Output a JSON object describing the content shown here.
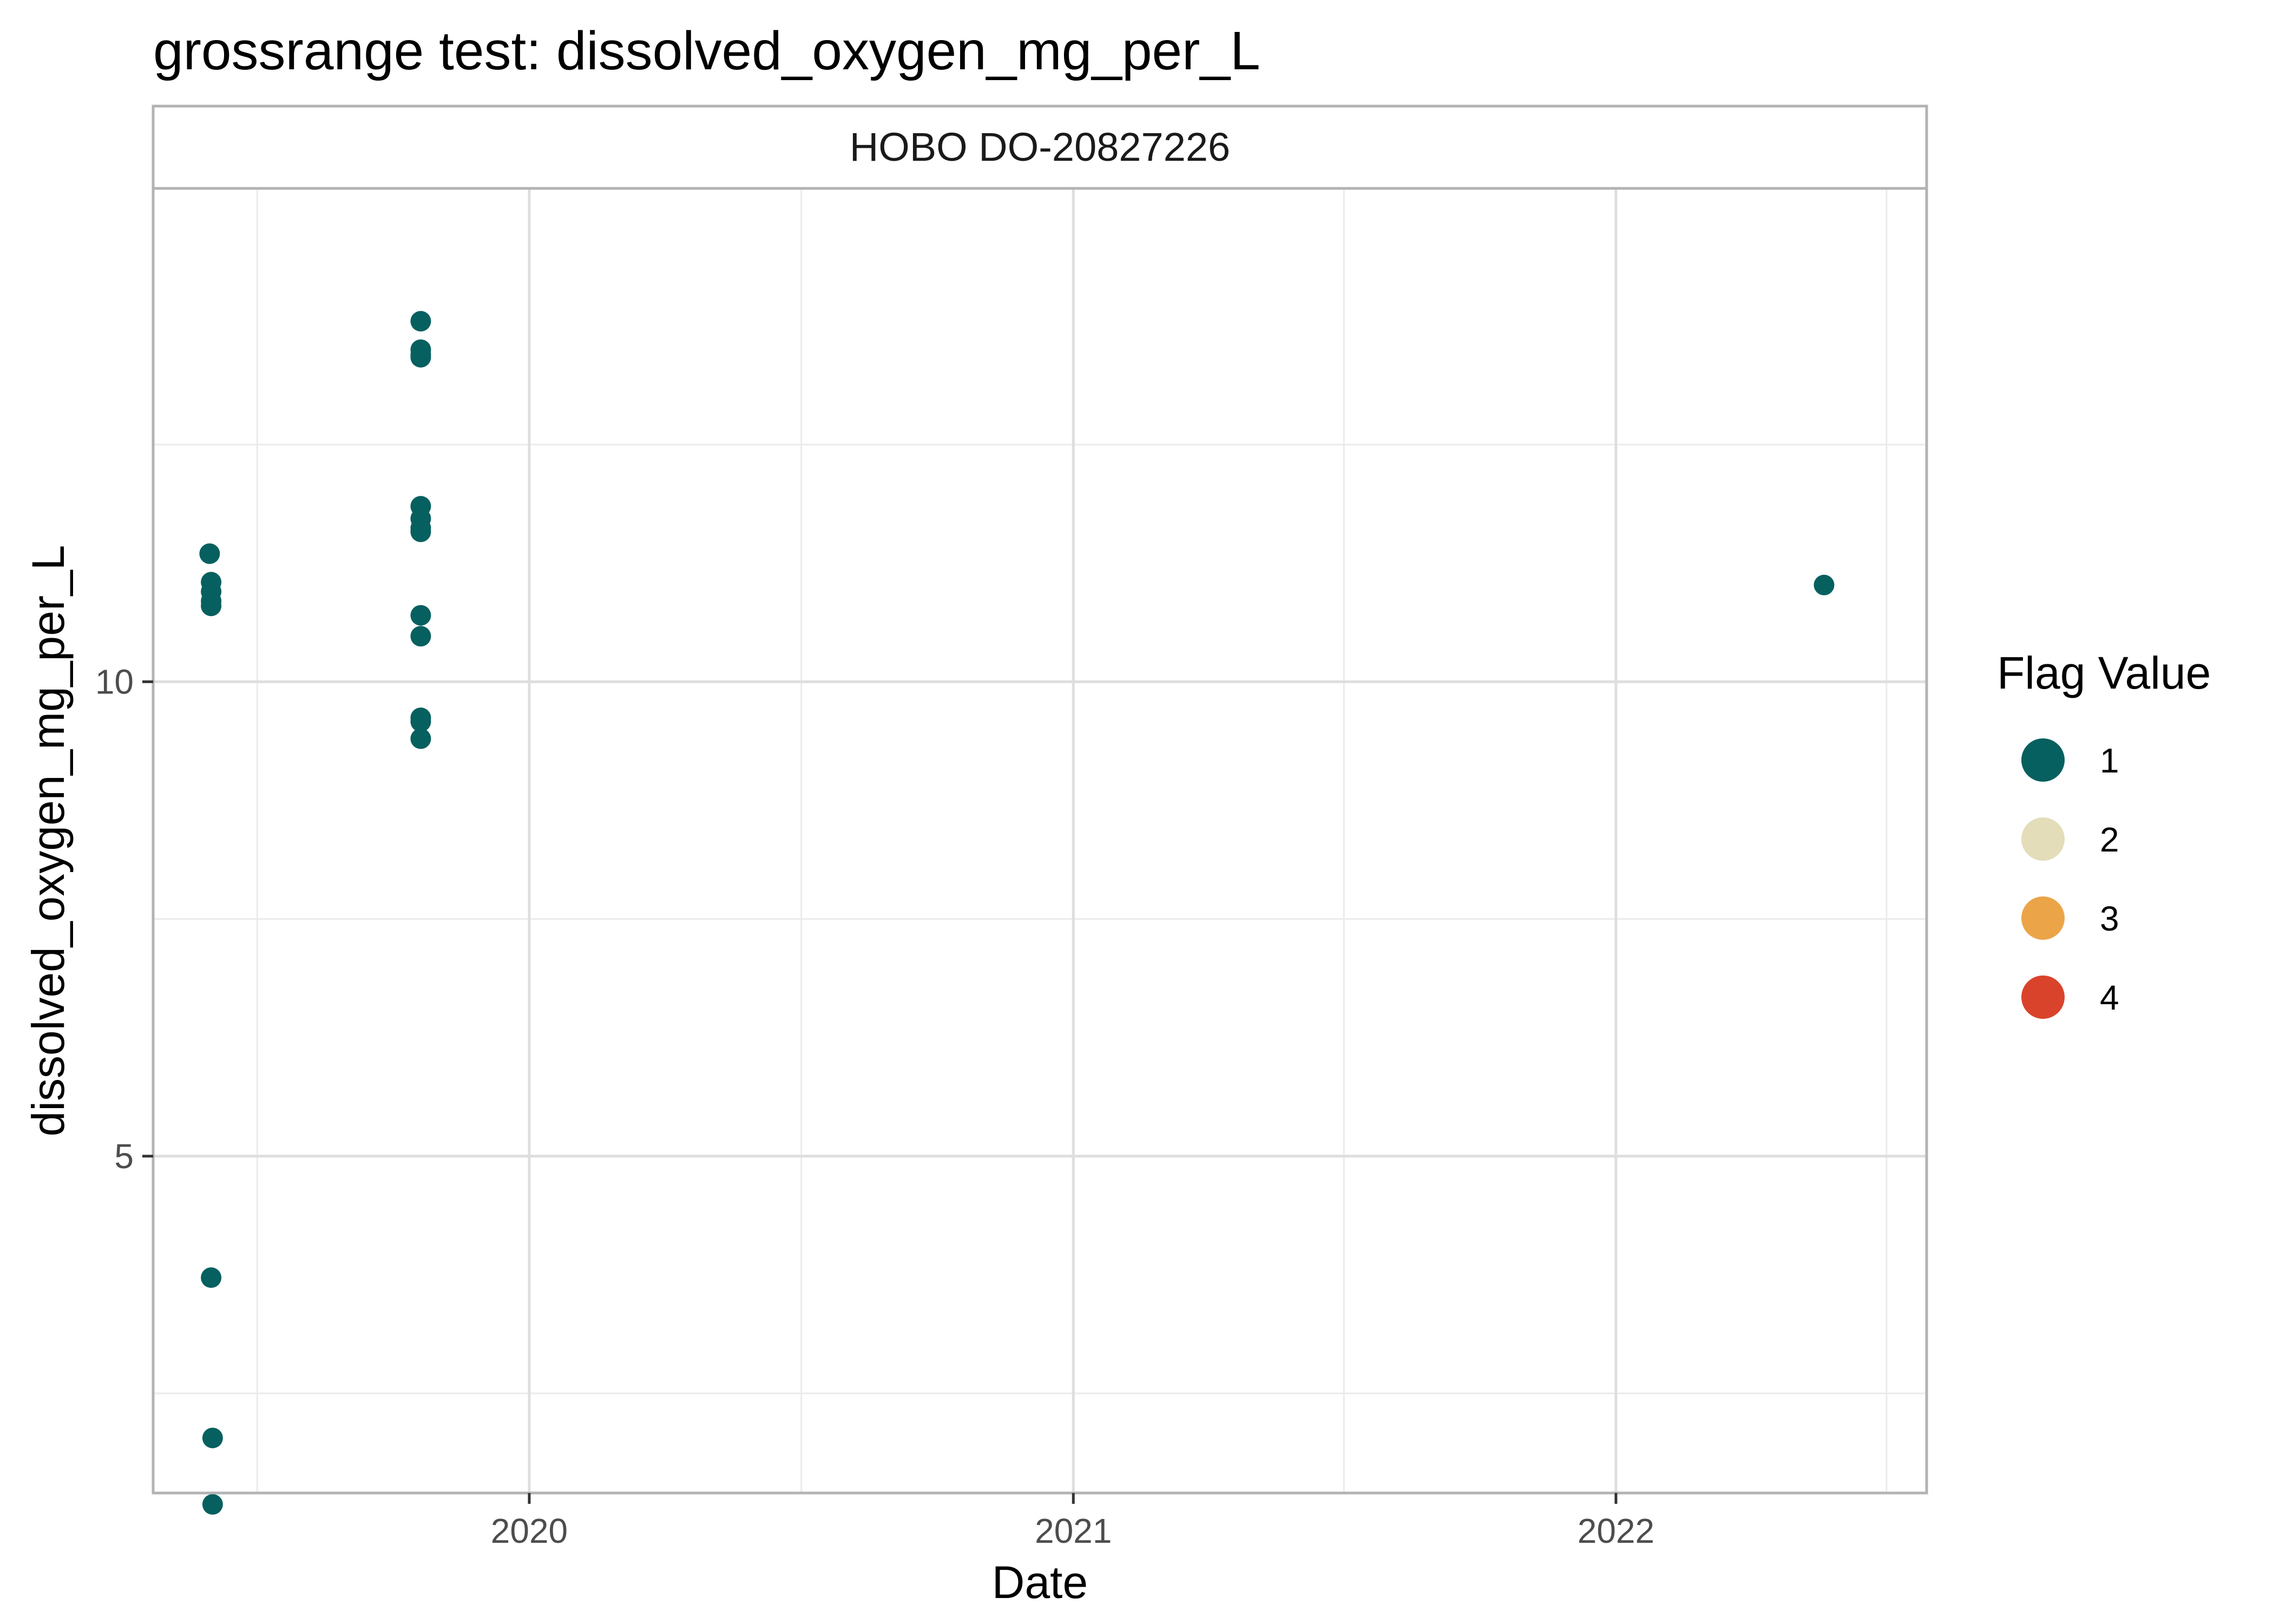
{
  "chart_data": {
    "type": "scatter",
    "title": "grossrange test: dissolved_oxygen_mg_per_L",
    "facet_label": "HOBO DO-20827226",
    "xlabel": "Date",
    "ylabel": "dissolved_oxygen_mg_per_L",
    "x_type": "date",
    "xlim": [
      "2019-04-23",
      "2022-07-29"
    ],
    "ylim": [
      1.45,
      15.2
    ],
    "x_ticks": [
      {
        "label": "2020",
        "date": "2020-01-01"
      },
      {
        "label": "2021",
        "date": "2021-01-01"
      },
      {
        "label": "2022",
        "date": "2022-01-01"
      }
    ],
    "x_minor_ticks": [
      "2019-07-02",
      "2020-07-02",
      "2021-07-02",
      "2022-07-02"
    ],
    "y_ticks": [
      5,
      10
    ],
    "y_minor_ticks": [
      2.5,
      7.5,
      12.5
    ],
    "grid": true,
    "legend": {
      "title": "Flag Value",
      "placement": "right",
      "entries": [
        {
          "label": "1",
          "color": "#06605F"
        },
        {
          "label": "2",
          "color": "#E3DDBA"
        },
        {
          "label": "3",
          "color": "#EBA448"
        },
        {
          "label": "4",
          "color": "#D9432B"
        }
      ]
    },
    "series": [
      {
        "flag": "1",
        "color": "#06605F",
        "points": [
          {
            "x": "2019-05-31",
            "y": 11.35
          },
          {
            "x": "2019-06-01",
            "y": 11.05
          },
          {
            "x": "2019-06-01",
            "y": 10.95
          },
          {
            "x": "2019-06-01",
            "y": 10.85
          },
          {
            "x": "2019-06-01",
            "y": 10.8
          },
          {
            "x": "2019-06-01",
            "y": 3.72
          },
          {
            "x": "2019-06-02",
            "y": 2.03
          },
          {
            "x": "2019-06-02",
            "y": 1.33
          },
          {
            "x": "2019-10-20",
            "y": 13.8
          },
          {
            "x": "2019-10-20",
            "y": 13.5
          },
          {
            "x": "2019-10-20",
            "y": 13.45
          },
          {
            "x": "2019-10-20",
            "y": 13.42
          },
          {
            "x": "2019-10-20",
            "y": 11.85
          },
          {
            "x": "2019-10-20",
            "y": 11.72
          },
          {
            "x": "2019-10-20",
            "y": 11.62
          },
          {
            "x": "2019-10-20",
            "y": 11.58
          },
          {
            "x": "2019-10-20",
            "y": 10.7
          },
          {
            "x": "2019-10-20",
            "y": 10.48
          },
          {
            "x": "2019-10-20",
            "y": 9.62
          },
          {
            "x": "2019-10-20",
            "y": 9.58
          },
          {
            "x": "2019-10-20",
            "y": 9.4
          },
          {
            "x": "2022-05-21",
            "y": 11.02
          }
        ]
      }
    ]
  }
}
